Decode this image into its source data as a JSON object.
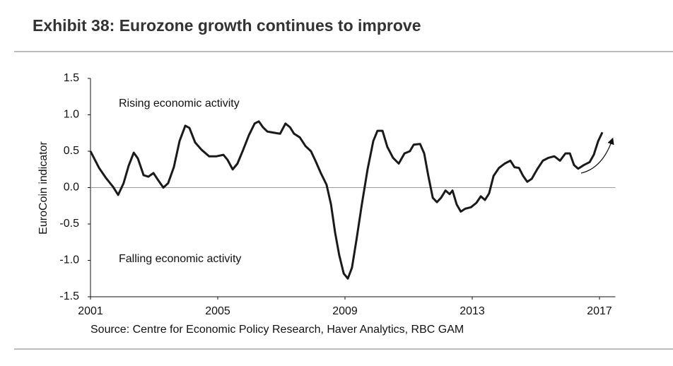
{
  "chart_data": {
    "type": "line",
    "title": "Exhibit 38: Eurozone growth continues to improve",
    "y_label": "EuroCoin indicator",
    "annotations": [
      "Rising economic activity",
      "Falling economic activity"
    ],
    "source": "Source: Centre for Economic Policy Research, Haver Analytics, RBC GAM",
    "x": [
      2001.0,
      2001.27,
      2001.49,
      2001.71,
      2001.87,
      2002.04,
      2002.2,
      2002.36,
      2002.49,
      2002.67,
      2002.82,
      2002.98,
      2003.13,
      2003.29,
      2003.44,
      2003.62,
      2003.8,
      2003.98,
      2004.11,
      2004.29,
      2004.49,
      2004.73,
      2004.96,
      2005.18,
      2005.31,
      2005.47,
      2005.62,
      2005.8,
      2005.98,
      2006.16,
      2006.29,
      2006.42,
      2006.56,
      2006.82,
      2006.96,
      2007.13,
      2007.27,
      2007.4,
      2007.58,
      2007.76,
      2007.93,
      2008.07,
      2008.24,
      2008.42,
      2008.56,
      2008.69,
      2008.82,
      2008.96,
      2009.09,
      2009.22,
      2009.36,
      2009.53,
      2009.71,
      2009.89,
      2010.02,
      2010.18,
      2010.33,
      2010.51,
      2010.69,
      2010.87,
      2011.04,
      2011.16,
      2011.36,
      2011.49,
      2011.62,
      2011.76,
      2011.89,
      2012.02,
      2012.16,
      2012.29,
      2012.38,
      2012.51,
      2012.64,
      2012.78,
      2012.96,
      2013.13,
      2013.27,
      2013.4,
      2013.53,
      2013.67,
      2013.84,
      2014.02,
      2014.2,
      2014.33,
      2014.47,
      2014.6,
      2014.73,
      2014.87,
      2015.04,
      2015.22,
      2015.4,
      2015.58,
      2015.76,
      2015.93,
      2016.07,
      2016.2,
      2016.33,
      2016.51,
      2016.69,
      2016.82,
      2016.96,
      2017.09
    ],
    "series": [
      {
        "color": "#1a1a1a",
        "values": [
          0.5,
          0.27,
          0.13,
          0.01,
          -0.1,
          0.06,
          0.3,
          0.48,
          0.4,
          0.17,
          0.15,
          0.2,
          0.1,
          0.0,
          0.06,
          0.28,
          0.64,
          0.85,
          0.82,
          0.62,
          0.52,
          0.43,
          0.43,
          0.45,
          0.38,
          0.25,
          0.33,
          0.52,
          0.72,
          0.88,
          0.91,
          0.83,
          0.77,
          0.75,
          0.74,
          0.88,
          0.83,
          0.74,
          0.69,
          0.57,
          0.5,
          0.37,
          0.2,
          0.04,
          -0.23,
          -0.62,
          -0.93,
          -1.18,
          -1.25,
          -1.1,
          -0.72,
          -0.23,
          0.25,
          0.64,
          0.78,
          0.78,
          0.56,
          0.41,
          0.33,
          0.47,
          0.5,
          0.59,
          0.6,
          0.47,
          0.16,
          -0.14,
          -0.2,
          -0.14,
          -0.04,
          -0.09,
          -0.04,
          -0.23,
          -0.33,
          -0.29,
          -0.27,
          -0.21,
          -0.12,
          -0.17,
          -0.08,
          0.16,
          0.27,
          0.33,
          0.37,
          0.28,
          0.27,
          0.16,
          0.08,
          0.12,
          0.25,
          0.37,
          0.41,
          0.43,
          0.37,
          0.47,
          0.47,
          0.31,
          0.26,
          0.31,
          0.35,
          0.45,
          0.64,
          0.76
        ]
      }
    ],
    "xlim": [
      2001,
      2017.5
    ],
    "xticks": [
      2001,
      2005,
      2009,
      2013,
      2017
    ],
    "ylim": [
      -1.5,
      1.5
    ],
    "yticks": [
      -1.5,
      -0.5,
      {
        "value": -1,
        "label": "-1.0"
      },
      {
        "value": 0,
        "label": "0.0"
      },
      0.5,
      {
        "value": 1,
        "label": "1.0"
      },
      1.5
    ]
  }
}
